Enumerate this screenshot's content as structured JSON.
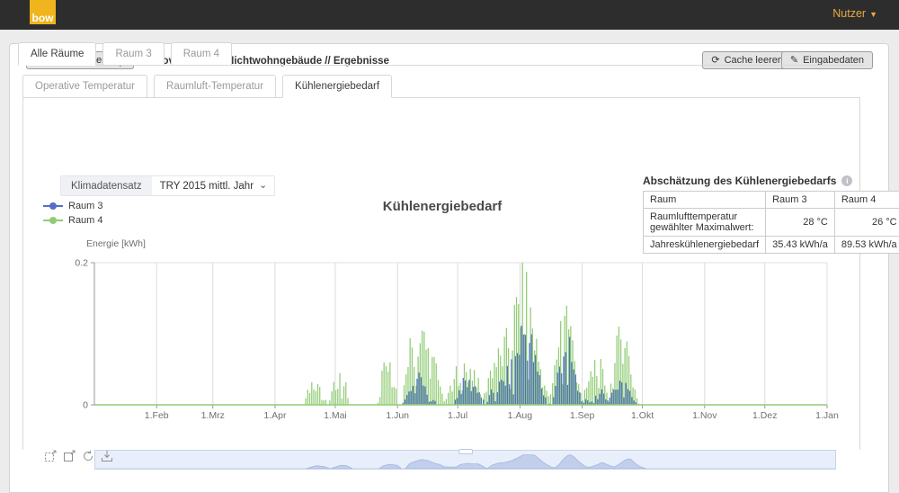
{
  "navbar": {
    "logo_text": "bow",
    "user_menu_label": "Nutzer"
  },
  "breadcrumb": {
    "back_button": "Projekt-Übersicht",
    "path": "Projekte // Novembertest Nichtwohngebäude // Ergebnisse",
    "cache_button": "Cache leeren",
    "input_button": "Eingabedaten"
  },
  "tabs": {
    "rooms": [
      {
        "label": "Alle Räume",
        "active": true
      },
      {
        "label": "Raum 3",
        "active": false
      },
      {
        "label": "Raum 4",
        "active": false
      }
    ],
    "views": [
      {
        "label": "Operative Temperatur",
        "active": false
      },
      {
        "label": "Raumluft-Temperatur",
        "active": false
      },
      {
        "label": "Kühlenergiebedarf",
        "active": true
      }
    ]
  },
  "climate_control": {
    "label": "Klimadatensatz",
    "value": "TRY 2015 mittl. Jahr"
  },
  "summary_table": {
    "title": "Abschätzung des Kühlenergiebedarfs",
    "headers": [
      "Raum",
      "Raum 3",
      "Raum 4"
    ],
    "rows": [
      [
        "Raumlufttemperatur gewählter Maximalwert:",
        "28 °C",
        "26 °C"
      ],
      [
        "Jahreskühlenergiebedarf",
        "35.43 kWh/a",
        "89.53 kWh/a"
      ]
    ]
  },
  "chart_data": {
    "type": "bar",
    "title": "Kühlenergiebedarf",
    "ylabel": "Energie [kWh]",
    "ylim": [
      0,
      0.2
    ],
    "yticks": [
      {
        "label": "0.2",
        "value": 0.2
      },
      {
        "label": "0",
        "value": 0
      }
    ],
    "x_unit": "day_of_year",
    "month_tick_labels": [
      "1.Feb",
      "1.Mrz",
      "1.Apr",
      "1.Mai",
      "1.Jun",
      "1.Jul",
      "1.Aug",
      "1.Sep",
      "1.Okt",
      "1.Nov",
      "1.Dez",
      "1.Jan"
    ],
    "month_start_days": [
      31,
      59,
      90,
      120,
      151,
      181,
      212,
      243,
      273,
      304,
      334,
      365
    ],
    "grid": true,
    "legend_position": "top-left",
    "series": [
      {
        "name": "Raum 3",
        "color": "#5470c6",
        "unit": "kWh",
        "envelope_day_kwh": [
          [
            0,
            0
          ],
          [
            152,
            0
          ],
          [
            155,
            0.015
          ],
          [
            158,
            0.03
          ],
          [
            161,
            0.045
          ],
          [
            164,
            0.03
          ],
          [
            167,
            0.015
          ],
          [
            170,
            0
          ],
          [
            178,
            0
          ],
          [
            181,
            0.025
          ],
          [
            184,
            0.04
          ],
          [
            187,
            0.035
          ],
          [
            190,
            0.03
          ],
          [
            192,
            0.015
          ],
          [
            194,
            0
          ],
          [
            197,
            0.02
          ],
          [
            200,
            0.03
          ],
          [
            203,
            0.04
          ],
          [
            206,
            0.055
          ],
          [
            209,
            0.08
          ],
          [
            211,
            0.11
          ],
          [
            213,
            0.13
          ],
          [
            215,
            0.125
          ],
          [
            217,
            0.1
          ],
          [
            219,
            0.07
          ],
          [
            221,
            0.045
          ],
          [
            223,
            0.02
          ],
          [
            225,
            0.005
          ],
          [
            227,
            0
          ],
          [
            229,
            0.03
          ],
          [
            231,
            0.07
          ],
          [
            233,
            0.1
          ],
          [
            234,
            0.11
          ],
          [
            236,
            0.09
          ],
          [
            238,
            0.06
          ],
          [
            240,
            0.03
          ],
          [
            242,
            0.01
          ],
          [
            246,
            0.005
          ],
          [
            249,
            0.015
          ],
          [
            252,
            0.02
          ],
          [
            254,
            0.01
          ],
          [
            257,
            0.02
          ],
          [
            260,
            0.035
          ],
          [
            262,
            0.05
          ],
          [
            264,
            0.04
          ],
          [
            266,
            0.02
          ],
          [
            268,
            0.01
          ],
          [
            270,
            0
          ],
          [
            364,
            0
          ]
        ]
      },
      {
        "name": "Raum 4",
        "color": "#91cc75",
        "unit": "kWh",
        "envelope_day_kwh": [
          [
            0,
            0
          ],
          [
            104,
            0
          ],
          [
            106,
            0.02
          ],
          [
            109,
            0.045
          ],
          [
            113,
            0.03
          ],
          [
            116,
            0
          ],
          [
            119,
            0.03
          ],
          [
            121,
            0.05
          ],
          [
            124,
            0.045
          ],
          [
            127,
            0
          ],
          [
            140,
            0
          ],
          [
            142,
            0.04
          ],
          [
            145,
            0.065
          ],
          [
            149,
            0.05
          ],
          [
            151,
            0
          ],
          [
            153,
            0
          ],
          [
            155,
            0.07
          ],
          [
            158,
            0.1
          ],
          [
            161,
            0.12
          ],
          [
            164,
            0.11
          ],
          [
            167,
            0.08
          ],
          [
            170,
            0.06
          ],
          [
            172,
            0.03
          ],
          [
            174,
            0.025
          ],
          [
            178,
            0.025
          ],
          [
            180,
            0.055
          ],
          [
            183,
            0.065
          ],
          [
            186,
            0.06
          ],
          [
            189,
            0.06
          ],
          [
            191,
            0.035
          ],
          [
            193,
            0
          ],
          [
            196,
            0.05
          ],
          [
            199,
            0.075
          ],
          [
            202,
            0.08
          ],
          [
            205,
            0.1
          ],
          [
            208,
            0.13
          ],
          [
            211,
            0.17
          ],
          [
            213,
            0.195
          ],
          [
            215,
            0.185
          ],
          [
            217,
            0.16
          ],
          [
            219,
            0.12
          ],
          [
            221,
            0.08
          ],
          [
            223,
            0.05
          ],
          [
            225,
            0.02
          ],
          [
            227,
            0.015
          ],
          [
            229,
            0.06
          ],
          [
            231,
            0.12
          ],
          [
            233,
            0.16
          ],
          [
            234,
            0.175
          ],
          [
            236,
            0.15
          ],
          [
            238,
            0.1
          ],
          [
            240,
            0.06
          ],
          [
            242,
            0.025
          ],
          [
            244,
            0.02
          ],
          [
            246,
            0.04
          ],
          [
            248,
            0.06
          ],
          [
            250,
            0.085
          ],
          [
            252,
            0.06
          ],
          [
            254,
            0.04
          ],
          [
            256,
            0.02
          ],
          [
            258,
            0.05
          ],
          [
            260,
            0.09
          ],
          [
            262,
            0.12
          ],
          [
            264,
            0.13
          ],
          [
            266,
            0.08
          ],
          [
            268,
            0.04
          ],
          [
            270,
            0.015
          ],
          [
            272,
            0
          ],
          [
            364,
            0
          ]
        ]
      }
    ]
  }
}
